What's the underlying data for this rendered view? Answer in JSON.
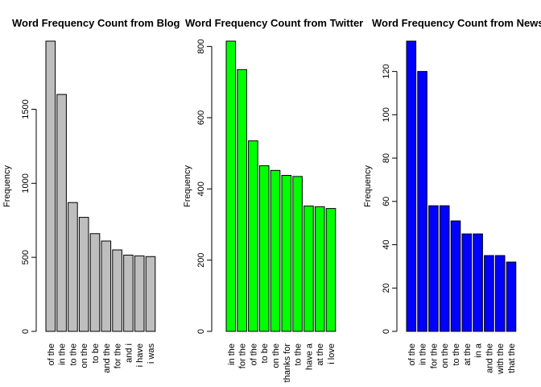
{
  "chart_data": [
    {
      "type": "bar",
      "title": "Word Frequency Count from Blog",
      "xlabel": "",
      "ylabel": "Frequency",
      "bar_color": "#bebebe",
      "categories": [
        "of the",
        "in the",
        "to the",
        "on the",
        "to be",
        "and the",
        "for the",
        "and i",
        "i have",
        "i was"
      ],
      "values": [
        1960,
        1600,
        870,
        770,
        660,
        610,
        550,
        515,
        510,
        505
      ],
      "ylim": [
        0,
        1960
      ],
      "yticks": [
        0,
        500,
        1000,
        1500
      ],
      "grid": false,
      "legend": "none"
    },
    {
      "type": "bar",
      "title": "Word Frequency Count from Twitter",
      "xlabel": "",
      "ylabel": "Frequency",
      "bar_color": "#00ff00",
      "categories": [
        "in the",
        "for the",
        "of the",
        "to be",
        "on the",
        "thanks for",
        "to the",
        "have a",
        "at the",
        "i love"
      ],
      "values": [
        815,
        735,
        535,
        465,
        452,
        438,
        435,
        352,
        350,
        345
      ],
      "ylim": [
        0,
        815
      ],
      "yticks": [
        0,
        200,
        400,
        600,
        800
      ],
      "grid": false,
      "legend": "none"
    },
    {
      "type": "bar",
      "title": "Word Frequency Count from News",
      "xlabel": "",
      "ylabel": "Frequency",
      "bar_color": "#0000ff",
      "categories": [
        "of the",
        "in the",
        "for the",
        "on the",
        "to the",
        "at the",
        "in a",
        "and the",
        "with the",
        "that the"
      ],
      "values": [
        134,
        120,
        58,
        58,
        51,
        45,
        45,
        35,
        35,
        32
      ],
      "ylim": [
        0,
        134
      ],
      "yticks": [
        0,
        20,
        40,
        60,
        80,
        100,
        120
      ],
      "grid": false,
      "legend": "none"
    }
  ]
}
